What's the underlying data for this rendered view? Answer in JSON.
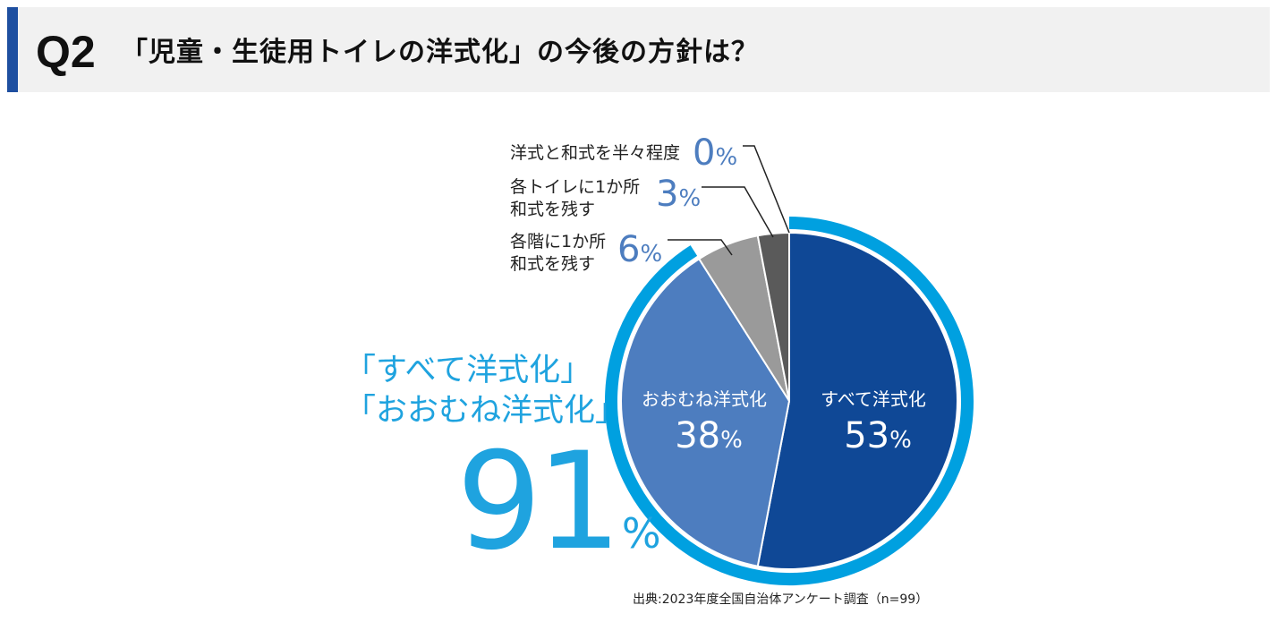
{
  "header": {
    "q_label": "Q2",
    "title": "「児童・生徒用トイレの洋式化」の今後の方針は？"
  },
  "chart_data": {
    "type": "pie",
    "slices": [
      {
        "label": "すべて洋式化",
        "value": 53,
        "pct_text": "53",
        "color": "#0f4896"
      },
      {
        "label": "おおむね洋式化",
        "value": 38,
        "pct_text": "38",
        "color": "#4d7dbf"
      },
      {
        "label_lines": [
          "各階に1か所",
          "和式を残す"
        ],
        "value": 6,
        "pct_text": "6",
        "color": "#9a9a9a"
      },
      {
        "label_lines": [
          "各トイレに1か所",
          "和式を残す"
        ],
        "value": 3,
        "pct_text": "3",
        "color": "#5a5a5a"
      },
      {
        "label": "洋式と和式を半々程度",
        "value": 0,
        "pct_text": "0",
        "color": "#333333"
      }
    ],
    "percent_sign": "%",
    "combined": {
      "lines": [
        "「すべて洋式化」",
        "「おおむね洋式化」"
      ],
      "value_text": "91",
      "percent_sign": "%",
      "ring_color": "#00a0e0",
      "value": 91
    },
    "source": "出典:2023年度全国自治体アンケート調査（n=99）"
  }
}
